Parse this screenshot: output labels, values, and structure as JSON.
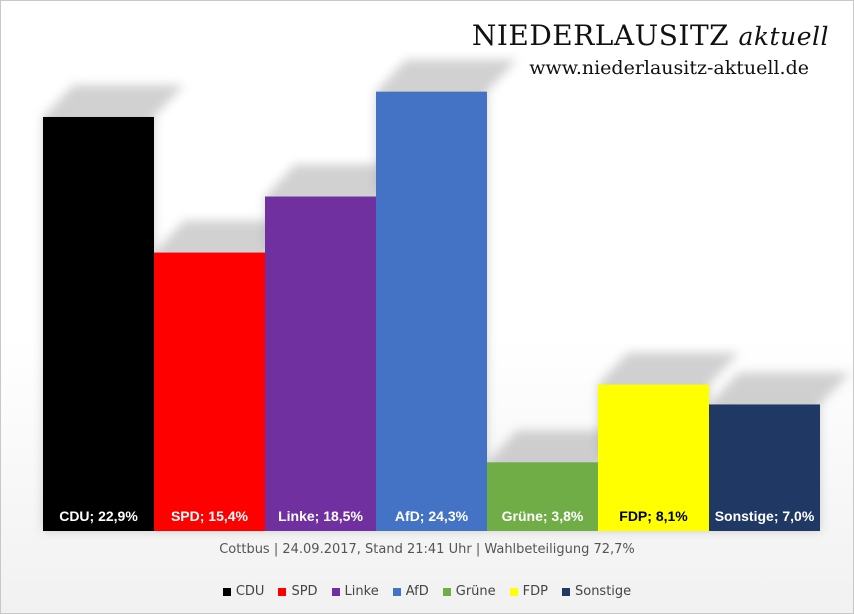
{
  "brand": {
    "title_main": "NIEDERLAUSITZ",
    "title_italic": "aktuell",
    "url": "www.niederlausitz-aktuell.de"
  },
  "caption": "Cottbus | 24.09.2017, Stand 21:41 Uhr | Wahlbeteiligung 72,7%",
  "chart_data": {
    "type": "bar",
    "categories": [
      "CDU",
      "SPD",
      "Linke",
      "AfD",
      "Grüne",
      "FDP",
      "Sonstige"
    ],
    "values": [
      22.9,
      15.4,
      18.5,
      24.3,
      3.8,
      8.1,
      7.0
    ],
    "data_labels": [
      "CDU; 22,9%",
      "SPD; 15,4%",
      "Linke; 18,5%",
      "AfD; 24,3%",
      "Grüne; 3,8%",
      "FDP; 8,1%",
      "Sonstige; 7,0%"
    ],
    "colors": [
      "#000000",
      "#ff0000",
      "#7030a0",
      "#4472c4",
      "#70ad47",
      "#ffff00",
      "#203864"
    ],
    "label_colors": [
      "#ffffff",
      "#ffffff",
      "#ffffff",
      "#ffffff",
      "#ffffff",
      "#000000",
      "#ffffff"
    ],
    "ylim": [
      0,
      25
    ],
    "grid": false,
    "legend": {
      "position": "bottom",
      "entries": [
        "CDU",
        "SPD",
        "Linke",
        "AfD",
        "Grüne",
        "FDP",
        "Sonstige"
      ]
    }
  }
}
